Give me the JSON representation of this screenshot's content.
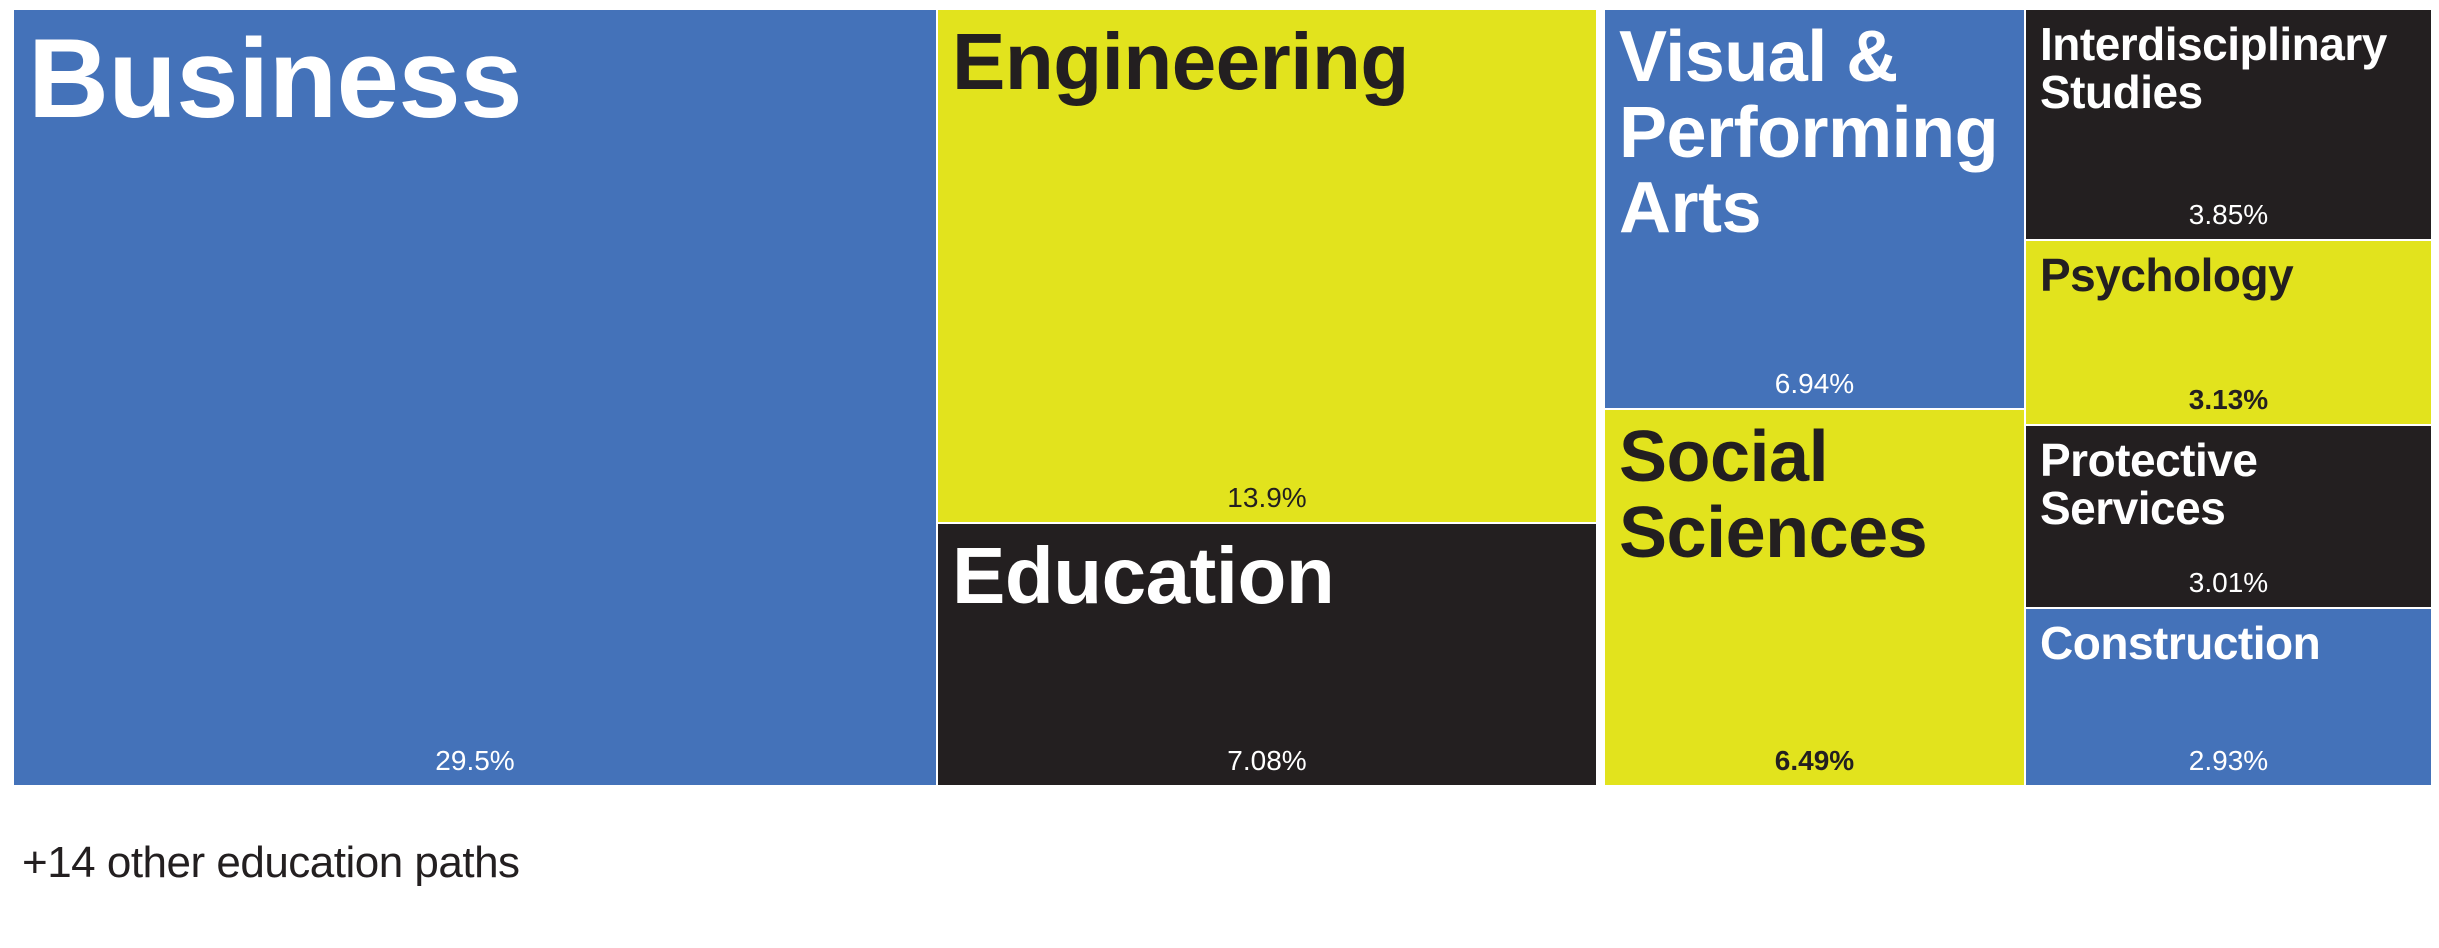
{
  "chart_data": {
    "type": "treemap",
    "items": [
      {
        "name": "Business",
        "label": "29.5%",
        "value": 29.5,
        "color": "#4472b9",
        "text_color": "#ffffff",
        "pct_bold": false
      },
      {
        "name": "Engineering",
        "label": "13.9%",
        "value": 13.9,
        "color": "#e2e31d",
        "text_color": "#231f20",
        "pct_bold": false
      },
      {
        "name": "Education",
        "label": "7.08%",
        "value": 7.08,
        "color": "#231f20",
        "text_color": "#ffffff",
        "pct_bold": false
      },
      {
        "name": "Visual &\nPerforming\nArts",
        "label": "6.94%",
        "value": 6.94,
        "color": "#4472b9",
        "text_color": "#ffffff",
        "pct_bold": false
      },
      {
        "name": "Social\nSciences",
        "label": "6.49%",
        "value": 6.49,
        "color": "#e2e31d",
        "text_color": "#231f20",
        "pct_bold": true
      },
      {
        "name": "Interdisciplinary\nStudies",
        "label": "3.85%",
        "value": 3.85,
        "color": "#231f20",
        "text_color": "#ffffff",
        "pct_bold": false
      },
      {
        "name": "Psychology",
        "label": "3.13%",
        "value": 3.13,
        "color": "#e2e31d",
        "text_color": "#231f20",
        "pct_bold": true
      },
      {
        "name": "Protective\nServices",
        "label": "3.01%",
        "value": 3.01,
        "color": "#231f20",
        "text_color": "#ffffff",
        "pct_bold": false
      },
      {
        "name": "Construction",
        "label": "2.93%",
        "value": 2.93,
        "color": "#4472b9",
        "text_color": "#ffffff",
        "pct_bold": false
      }
    ],
    "footnote": "+14 other education paths"
  }
}
